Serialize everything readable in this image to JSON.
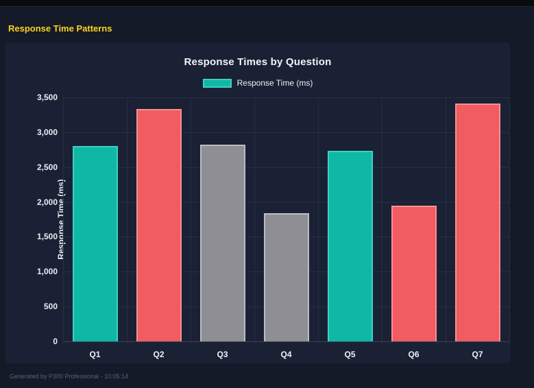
{
  "header": {
    "title": "Response Time Patterns"
  },
  "chart_data": {
    "type": "bar",
    "title": "Response Times by Question",
    "legend_label": "Response Time (ms)",
    "legend_position": "top",
    "categories": [
      "Q1",
      "Q2",
      "Q3",
      "Q4",
      "Q5",
      "Q6",
      "Q7"
    ],
    "values": [
      2800,
      3330,
      2820,
      1840,
      2730,
      1950,
      3410
    ],
    "xlabel": "",
    "ylabel": "Response Time (ms)",
    "ylim": [
      0,
      3500
    ],
    "ytick_step": 500,
    "ytick_labels": [
      "0",
      "500",
      "1,000",
      "1,500",
      "2,000",
      "2,500",
      "3,000",
      "3,500"
    ],
    "grid": true,
    "bar_colors": [
      {
        "name": "teal",
        "fill": "#0eb8a4",
        "border": "#3fd2bf"
      },
      {
        "name": "red",
        "fill": "#f05c5f",
        "border": "#f59193"
      },
      {
        "name": "gray",
        "fill": "#8e8e94",
        "border": "#bcbdc3"
      },
      {
        "name": "gray",
        "fill": "#8e8e94",
        "border": "#bcbdc3"
      },
      {
        "name": "teal",
        "fill": "#0eb8a4",
        "border": "#3fd2bf"
      },
      {
        "name": "red",
        "fill": "#f05c5f",
        "border": "#f59193"
      },
      {
        "name": "red",
        "fill": "#f05c5f",
        "border": "#f59193"
      }
    ],
    "legend_swatch": {
      "fill": "#0eb8a4",
      "border": "#3fd2bf"
    }
  },
  "footer": {
    "text": "Generated by P300 Professional - 10:05:14"
  },
  "colors": {
    "accent_yellow": "#fdd21f",
    "page_bg": "#151a28",
    "panel_bg": "#1b2134",
    "topbar_bg": "#0a0b0e",
    "grid": "#272e44",
    "text": "#edf0f5",
    "muted_text": "#59617a"
  }
}
